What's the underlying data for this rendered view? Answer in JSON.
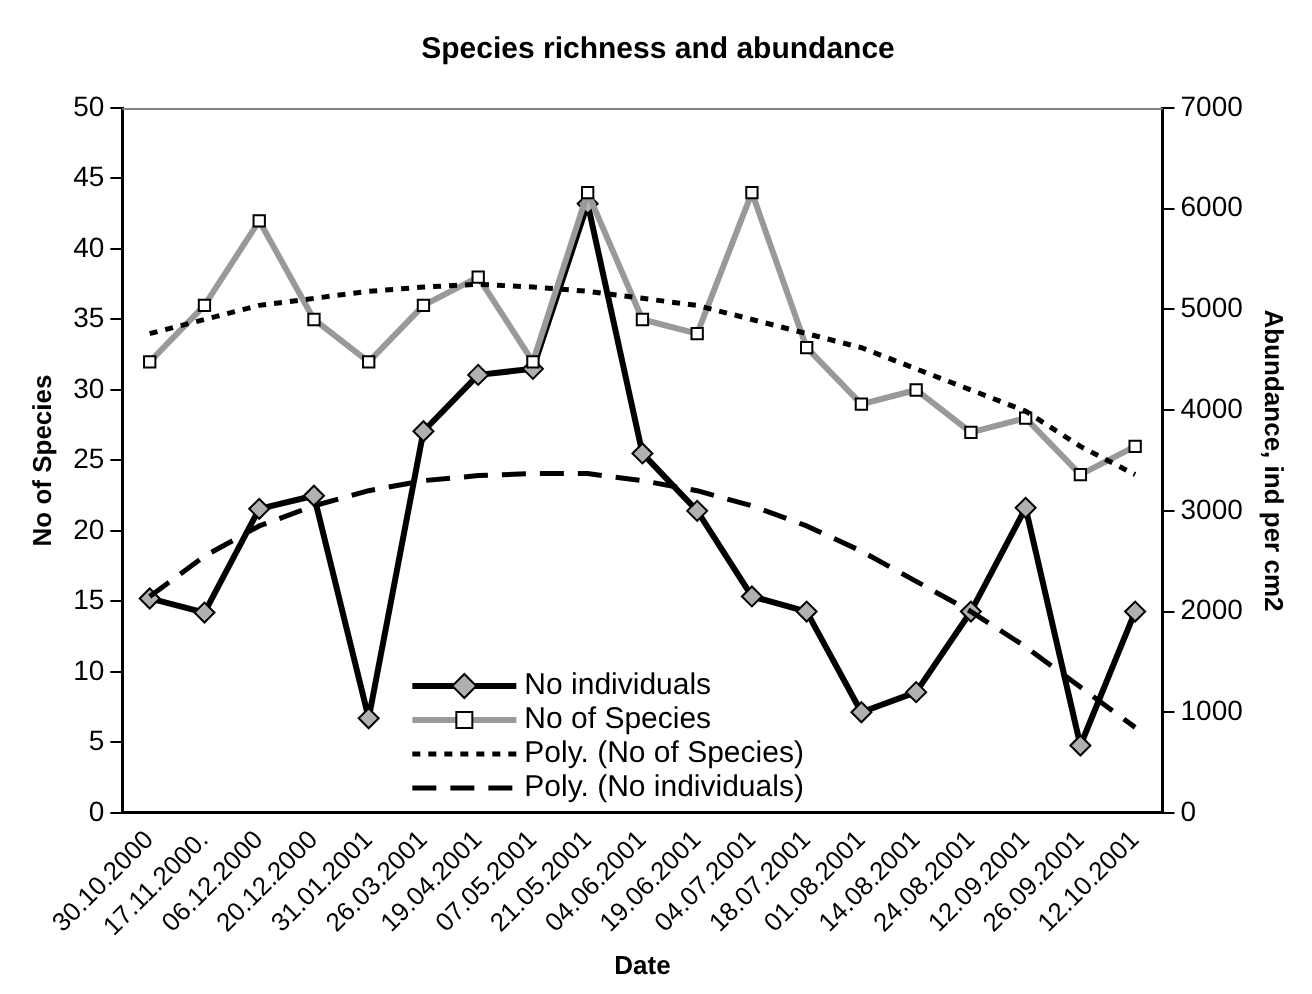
{
  "chart_data": {
    "type": "line",
    "title": "Species richness and abundance",
    "xlabel": "Date",
    "ylabel": "No of Species",
    "y2label": "Abundance, ind per cm2",
    "categories": [
      "30.10.2000",
      "17.11.2000.",
      "06.12.2000",
      "20.12.2000",
      "31.01.2001",
      "26.03.2001",
      "19.04.2001",
      "07.05.2001",
      "21.05.2001",
      "04.06.2001",
      "19.06.2001",
      "04.07.2001",
      "18.07.2001",
      "01.08.2001",
      "14.08.2001",
      "24.08.2001",
      "12.09.2001",
      "26.09.2001",
      "12.10.2001"
    ],
    "series": [
      {
        "name": "No individuals",
        "color": "#000000",
        "axis": "y2",
        "marker": "diamond",
        "line_style": "solid",
        "values": [
          2130,
          1990,
          3020,
          3150,
          940,
          3790,
          4350,
          4410,
          6050,
          3570,
          3000,
          2150,
          2000,
          1000,
          1200,
          2000,
          3030,
          670,
          2000
        ]
      },
      {
        "name": "No of Species",
        "color": "#999999",
        "marker": "square",
        "line_style": "solid",
        "values": [
          32,
          36,
          42,
          35,
          32,
          36,
          38,
          32,
          44,
          35,
          34,
          44,
          33,
          29,
          30,
          27,
          28,
          24,
          26
        ]
      },
      {
        "name": "Poly. (No of Species)",
        "color": "#000000",
        "marker": "none",
        "line_style": "dotted",
        "values": [
          34,
          35,
          36,
          36.5,
          37,
          37.3,
          37.5,
          37.3,
          37,
          36.5,
          36,
          35,
          34,
          33,
          31.5,
          30,
          28.5,
          26,
          24
        ]
      },
      {
        "name": "Poly. (No individuals)",
        "color": "#000000",
        "axis": "y2",
        "marker": "none",
        "line_style": "dashed",
        "values": [
          2150,
          2550,
          2850,
          3050,
          3200,
          3300,
          3350,
          3370,
          3370,
          3300,
          3200,
          3050,
          2850,
          2600,
          2300,
          2000,
          1650,
          1250,
          850
        ]
      }
    ],
    "ylim": [
      0,
      50
    ],
    "yticks": [
      0,
      5,
      10,
      15,
      20,
      25,
      30,
      35,
      40,
      45,
      50
    ],
    "y2lim": [
      0,
      7000
    ],
    "y2ticks": [
      0,
      1000,
      2000,
      3000,
      4000,
      5000,
      6000,
      7000
    ],
    "grid": false,
    "legend": "bottom"
  }
}
